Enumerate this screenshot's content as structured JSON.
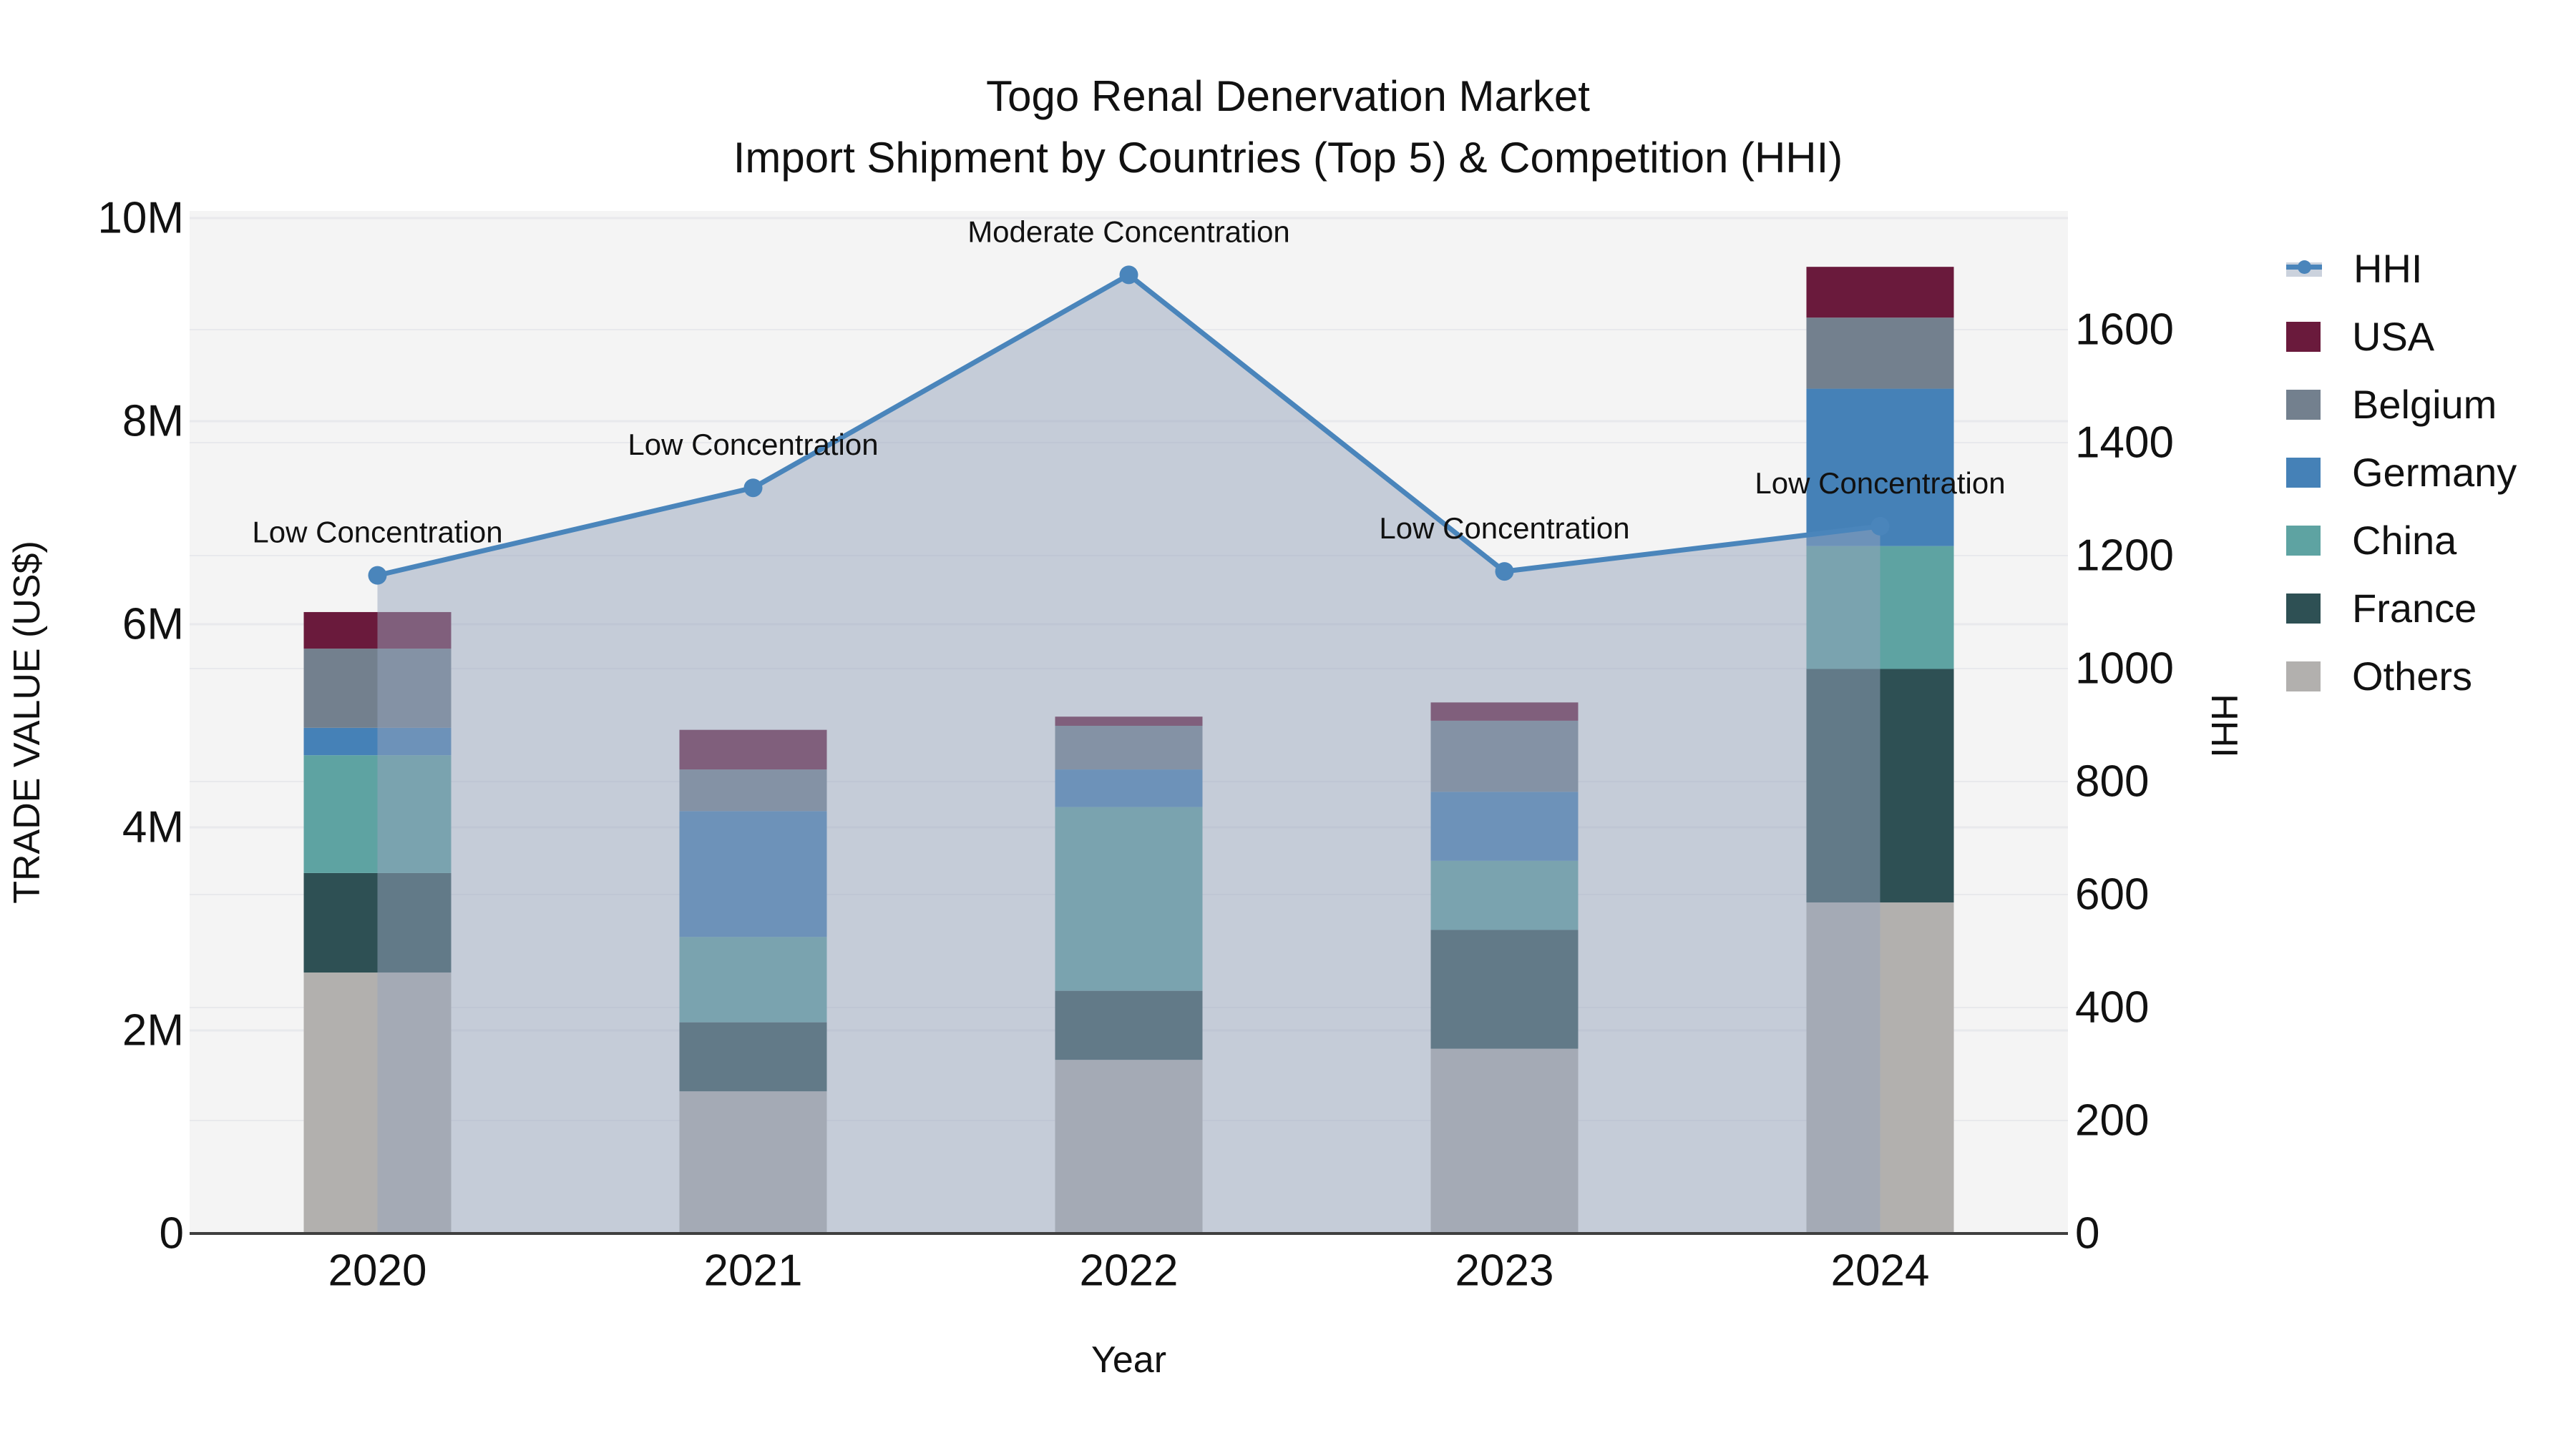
{
  "title": {
    "line1": "Togo Renal Denervation Market",
    "line2": "Import Shipment by Countries (Top 5) & Competition (HHI)"
  },
  "axes": {
    "y_left_title": "TRADE VALUE (US$)",
    "y_right_title": "HHI",
    "x_title": "Year"
  },
  "colors": {
    "hhi_line": "#4a85bb",
    "hhi_area": "rgba(150,164,187,0.5)",
    "plot_bg": "#f4f4f4",
    "gridline": "#e8e9ec",
    "axis_line": "#3f3f3f",
    "usa": "#6a1a3c",
    "belgium": "#73808e",
    "germany": "#4581b7",
    "china": "#5ea3a2",
    "france": "#2e5054",
    "others": "#b2b0ae"
  },
  "chart_data": {
    "type": "bar",
    "subtype": "stacked-bars-with-line",
    "categories": [
      "2020",
      "2021",
      "2022",
      "2023",
      "2024"
    ],
    "series": [
      {
        "name": "Others",
        "color": "#b2b0ae",
        "values": [
          2.57,
          1.4,
          1.71,
          1.82,
          3.26
        ]
      },
      {
        "name": "France",
        "color": "#2e5054",
        "values": [
          0.98,
          0.68,
          0.68,
          1.17,
          2.3
        ]
      },
      {
        "name": "China",
        "color": "#5ea3a2",
        "values": [
          1.16,
          0.84,
          1.81,
          0.68,
          1.21
        ]
      },
      {
        "name": "Germany",
        "color": "#4581b7",
        "values": [
          0.27,
          1.24,
          0.37,
          0.68,
          1.55
        ]
      },
      {
        "name": "Belgium",
        "color": "#73808e",
        "values": [
          0.78,
          0.41,
          0.43,
          0.7,
          0.7
        ]
      },
      {
        "name": "USA",
        "color": "#6a1a3c",
        "values": [
          0.36,
          0.39,
          0.09,
          0.18,
          0.5
        ]
      }
    ],
    "bar_totals": [
      6.12,
      4.96,
      5.09,
      5.23,
      9.52
    ],
    "hhi": {
      "name": "HHI",
      "color": "#4a85bb",
      "area_color": "rgba(150,164,187,0.5)",
      "values": [
        1165,
        1320,
        1697,
        1172,
        1252
      ]
    },
    "annotations": [
      "Low Concentration",
      "Low Concentration",
      "Moderate Concentration",
      "Low Concentration",
      "Low Concentration"
    ],
    "title": "Togo Renal Denervation Market Import Shipment by Countries (Top 5) & Competition (HHI)",
    "xlabel": "Year",
    "ylabel_left": "TRADE VALUE (US$)",
    "ylabel_right": "HHI",
    "y_left": {
      "ticks": [
        "0",
        "2M",
        "4M",
        "6M",
        "8M",
        "10M"
      ],
      "tick_values": [
        0,
        2,
        4,
        6,
        8,
        10
      ],
      "ylim": [
        0,
        10.07
      ]
    },
    "y_right": {
      "ticks": [
        "0",
        "200",
        "400",
        "600",
        "800",
        "1000",
        "1200",
        "1400",
        "1600"
      ],
      "tick_values": [
        0,
        200,
        400,
        600,
        800,
        1000,
        1200,
        1400,
        1600
      ],
      "ylim": [
        0,
        1810
      ]
    },
    "grid": true,
    "legend_position": "right"
  },
  "legend": {
    "items": [
      {
        "label": "HHI",
        "type": "line",
        "color": "#4a85bb",
        "band": "#cbd2dd"
      },
      {
        "label": "USA",
        "type": "square",
        "color": "#6a1a3c"
      },
      {
        "label": "Belgium",
        "type": "square",
        "color": "#73808e"
      },
      {
        "label": "Germany",
        "type": "square",
        "color": "#4581b7"
      },
      {
        "label": "China",
        "type": "square",
        "color": "#5ea3a2"
      },
      {
        "label": "France",
        "type": "square",
        "color": "#2e5054"
      },
      {
        "label": "Others",
        "type": "square",
        "color": "#b2b0ae"
      }
    ]
  }
}
